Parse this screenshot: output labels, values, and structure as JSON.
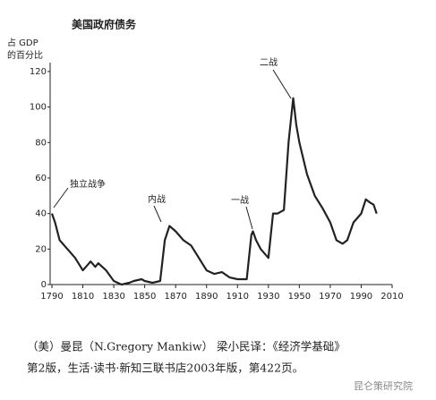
{
  "chart_data": {
    "type": "line",
    "title": "美国政府债务",
    "y_label": [
      "占 GDP",
      "的百分比"
    ],
    "x": [
      1790,
      1792,
      1795,
      1800,
      1805,
      1810,
      1812,
      1815,
      1818,
      1820,
      1825,
      1830,
      1835,
      1840,
      1843,
      1848,
      1850,
      1855,
      1860,
      1863,
      1866,
      1870,
      1875,
      1880,
      1885,
      1890,
      1895,
      1900,
      1905,
      1910,
      1916,
      1919,
      1920,
      1922,
      1925,
      1930,
      1933,
      1936,
      1940,
      1943,
      1946,
      1948,
      1950,
      1955,
      1960,
      1965,
      1970,
      1974,
      1978,
      1981,
      1985,
      1990,
      1993,
      1996,
      1998,
      2000
    ],
    "series": [
      {
        "color": "#222222",
        "values": [
          40,
          35,
          25,
          20,
          15,
          8,
          10,
          13,
          10,
          12,
          8,
          2,
          0,
          1,
          2,
          3,
          2,
          1,
          2,
          25,
          33,
          30,
          25,
          22,
          15,
          8,
          6,
          7,
          4,
          3,
          3,
          28,
          30,
          25,
          20,
          15,
          40,
          40,
          42,
          80,
          105,
          90,
          80,
          62,
          50,
          43,
          35,
          25,
          23,
          25,
          35,
          40,
          48,
          46,
          45,
          40
        ]
      }
    ],
    "xlim": [
      1790,
      2010
    ],
    "xticks": [
      1790,
      1810,
      1830,
      1850,
      1870,
      1890,
      1910,
      1930,
      1950,
      1970,
      1990,
      2010
    ],
    "ylim": [
      0,
      125
    ],
    "yticks": [
      0,
      20,
      40,
      60,
      80,
      100,
      120
    ],
    "annotations": [
      "独立战争",
      "内战",
      "一战",
      "二战"
    ],
    "caption": [
      "（美）曼昆（N.Gregory Mankiw） 梁小民译：《经济学基础》",
      "第2版，生活·读书·新知三联书店2003年版，第422页。"
    ],
    "watermark": "昆仑策研究院"
  }
}
